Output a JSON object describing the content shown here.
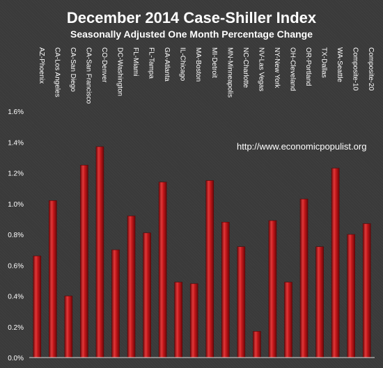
{
  "chart_data": {
    "type": "bar",
    "title": "December 2014 Case-Shiller Index",
    "subtitle": "Seasonally Adjusted One Month Percentage Change",
    "annotation": "http://www.economicpopulist.org",
    "categories": [
      "AZ-Phoenix",
      "CA-Los Angeles",
      "CA-San Diego",
      "CA-San Francisco",
      "CO-Denver",
      "DC-Washington",
      "FL-Miami",
      "FL-Tampa",
      "GA-Atlanta",
      "IL-Chicago",
      "MA-Boston",
      "MI-Detroit",
      "MN-Minneapolis",
      "NC-Charlotte",
      "NV-Las Vegas",
      "NY-New York",
      "OH-Cleveland",
      "OR-Portland",
      "TX-Dallas",
      "WA-Seattle",
      "Composite-10",
      "Composite-20"
    ],
    "values": [
      0.66,
      1.02,
      0.4,
      1.25,
      1.37,
      0.7,
      0.92,
      0.81,
      1.14,
      0.49,
      0.48,
      1.15,
      0.88,
      0.72,
      0.17,
      0.89,
      0.49,
      1.03,
      0.72,
      1.23,
      0.8,
      0.87
    ],
    "ylim": [
      0,
      1.6
    ],
    "yticks": [
      "0.0%",
      "0.2%",
      "0.4%",
      "0.6%",
      "0.8%",
      "1.0%",
      "1.2%",
      "1.4%",
      "1.6%"
    ],
    "grid": false,
    "bar_color": "#c0181b"
  }
}
